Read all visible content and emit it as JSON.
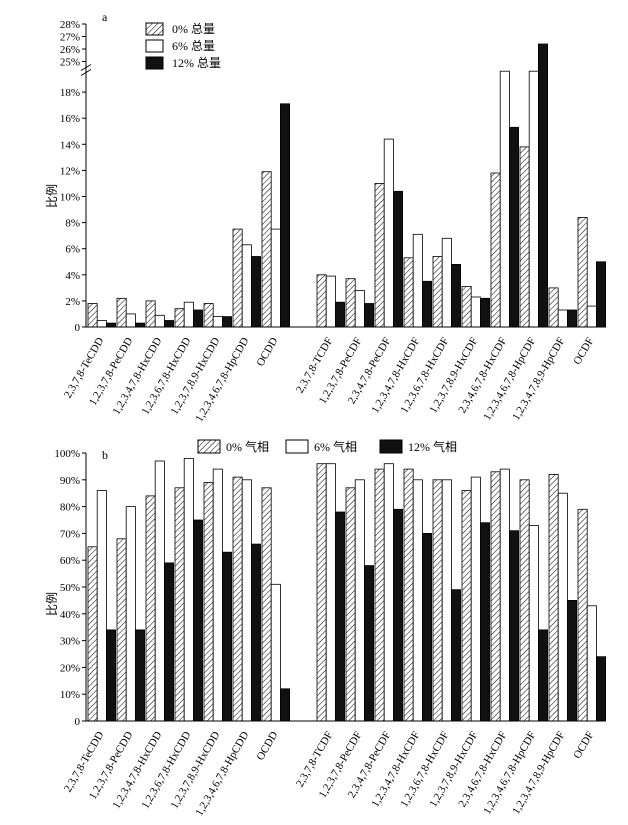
{
  "chart_data": [
    {
      "type": "bar",
      "panel_label": "a",
      "ylabel": "比例",
      "categories": [
        "2,3,7,8-TeCDD",
        "1,2,3,7,8-PeCDD",
        "1,2,3,4,7,8-HxCDD",
        "1,2,3,6,7,8-HxCDD",
        "1,2,3,7,8,9-HxCDD",
        "1,2,3,4,6,7,8-HpCDD",
        "OCDD",
        "2,3,7,8-TCDF",
        "1,2,3,7,8-PeCDF",
        "2,3,4,7,8-PeCDF",
        "1,2,3,4,7,8-HxCDF",
        "1,2,3,6,7,8-HxCDF",
        "1,2,3,7,8,9-HxCDF",
        "2,3,4,6,7,8-HxCDF",
        "1,2,3,4,6,7,8-HpCDF",
        "1,2,3,4,7,8,9-HpCDF",
        "OCDF"
      ],
      "series": [
        {
          "name": "0% 总量",
          "pattern": "hatch",
          "values": [
            1.8,
            2.2,
            2.0,
            1.4,
            1.8,
            7.5,
            11.9,
            4.0,
            3.7,
            11.0,
            5.3,
            5.4,
            3.1,
            11.8,
            13.8,
            3.0,
            8.4
          ]
        },
        {
          "name": "6% 总量",
          "pattern": "white",
          "values": [
            0.5,
            1.0,
            0.9,
            1.9,
            0.8,
            6.3,
            7.5,
            3.9,
            2.8,
            14.4,
            7.1,
            6.8,
            2.3,
            19.6,
            19.6,
            1.3,
            1.6
          ]
        },
        {
          "name": "12% 总量",
          "pattern": "black",
          "values": [
            0.3,
            0.3,
            0.5,
            1.3,
            0.8,
            5.4,
            17.1,
            1.9,
            1.8,
            10.4,
            3.5,
            4.8,
            2.2,
            15.3,
            26.4,
            1.3,
            5.0
          ]
        }
      ],
      "ylim": [
        0,
        28
      ],
      "axis_break": [
        19.8,
        25
      ],
      "yticks_lower": [
        "0",
        "2%",
        "4%",
        "6%",
        "8%",
        "10%",
        "12%",
        "14%",
        "16%",
        "18%"
      ],
      "yticks_upper": [
        "25%",
        "26%",
        "27%",
        "28%"
      ]
    },
    {
      "type": "bar",
      "panel_label": "b",
      "ylabel": "比例",
      "categories": [
        "2,3,7,8-TeCDD",
        "1,2,3,7,8-PeCDD",
        "1,2,3,4,7,8-HxCDD",
        "1,2,3,6,7,8-HxCDD",
        "1,2,3,7,8,9-HxCDD",
        "1,2,3,4,6,7,8-HpCDD",
        "OCDD",
        "2,3,7,8-TCDF",
        "1,2,3,7,8-PeCDF",
        "2,3,4,7,8-PeCDF",
        "1,2,3,4,7,8-HxCDF",
        "1,2,3,6,7,8-HxCDF",
        "1,2,3,7,8,9-HxCDF",
        "2,3,4,6,7,8-HxCDF",
        "1,2,3,4,6,7,8-HpCDF",
        "1,2,3,4,7,8,9-HpCDF",
        "OCDF"
      ],
      "series": [
        {
          "name": "0% 气相",
          "pattern": "hatch",
          "values": [
            65,
            68,
            84,
            87,
            89,
            91,
            87,
            96,
            87,
            94,
            94,
            90,
            86,
            93,
            90,
            92,
            79
          ]
        },
        {
          "name": "6% 气相",
          "pattern": "white",
          "values": [
            86,
            80,
            97,
            98,
            94,
            90,
            51,
            96,
            90,
            96,
            90,
            90,
            91,
            94,
            73,
            85,
            43
          ]
        },
        {
          "name": "12% 气相",
          "pattern": "black",
          "values": [
            34,
            34,
            59,
            75,
            63,
            66,
            12,
            78,
            58,
            79,
            70,
            49,
            74,
            71,
            34,
            45,
            24
          ]
        }
      ],
      "ylim": [
        0,
        100
      ],
      "yticks": [
        "0",
        "10%",
        "20%",
        "30%",
        "40%",
        "50%",
        "60%",
        "70%",
        "80%",
        "90%",
        "100%"
      ]
    }
  ]
}
